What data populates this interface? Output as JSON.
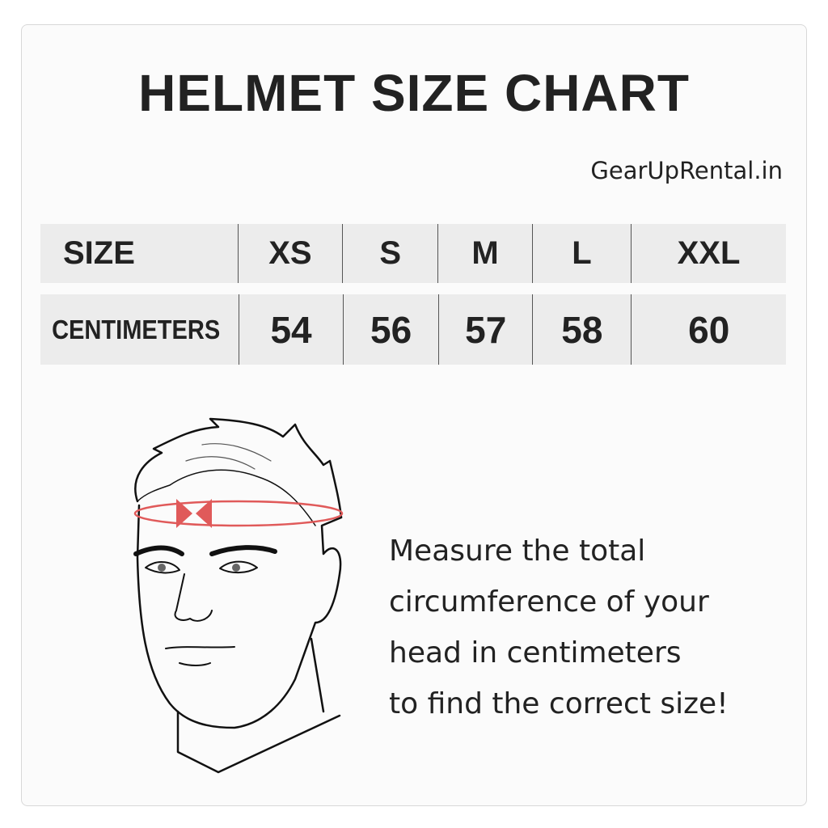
{
  "title": "HELMET SIZE CHART",
  "brand": "GearUpRental.in",
  "table": {
    "header": [
      "SIZE",
      "XS",
      "S",
      "M",
      "L",
      "XXL"
    ],
    "row": [
      "CENTIMETERS",
      "54",
      "56",
      "57",
      "58",
      "60"
    ]
  },
  "instructions": [
    "Measure the total",
    "circumference of your",
    "head in centimeters",
    "to find the correct size!"
  ],
  "colors": {
    "accent": "#e05a5a",
    "row_bg": "#ececec"
  },
  "illustration": "head-measurement-icon"
}
